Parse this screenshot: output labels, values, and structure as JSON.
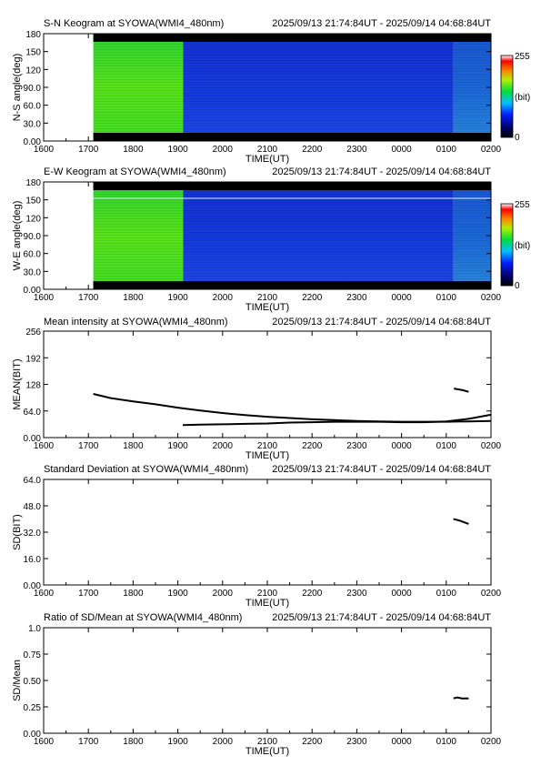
{
  "x_tick_labels": [
    "1600",
    "1700",
    "1800",
    "1900",
    "2000",
    "2100",
    "2200",
    "2300",
    "0000",
    "0100",
    "0200"
  ],
  "colorbar": {
    "max_label": "255",
    "unit_label": "(bit)",
    "min_label": "0"
  },
  "chart_data": [
    {
      "id": "sn_keogram",
      "type": "heatmap",
      "title": "S-N Keogram at SYOWA(WMI4_480nm)",
      "time_range": "2025/09/13 21:74:84UT - 2025/09/14 04:68:84UT",
      "xlabel": "TIME(UT)",
      "ylabel": "N-S angle(deg)",
      "xlim": [
        1600,
        2600
      ],
      "ylim": [
        0,
        180
      ],
      "y_ticks": [
        "0.00",
        "30.0",
        "60.0",
        "90.0",
        "120",
        "150",
        "180"
      ],
      "color_scale": [
        0,
        255
      ],
      "segments": [
        {
          "x": [
            1711,
            1912
          ],
          "value": 150
        },
        {
          "x": [
            1912,
            2516
          ],
          "value": 50
        },
        {
          "x": [
            2516,
            2600
          ],
          "value": 75
        }
      ]
    },
    {
      "id": "ew_keogram",
      "type": "heatmap",
      "title": "E-W Keogram at SYOWA(WMI4_480nm)",
      "time_range": "2025/09/13 21:74:84UT - 2025/09/14 04:68:84UT",
      "xlabel": "TIME(UT)",
      "ylabel": "W-E angle(deg)",
      "xlim": [
        1600,
        2600
      ],
      "ylim": [
        0,
        180
      ],
      "y_ticks": [
        "0.00",
        "30.0",
        "60.0",
        "90.0",
        "120",
        "150",
        "180"
      ],
      "color_scale": [
        0,
        255
      ],
      "segments": [
        {
          "x": [
            1711,
            1912
          ],
          "value": 150
        },
        {
          "x": [
            1912,
            2516
          ],
          "value": 50
        },
        {
          "x": [
            2516,
            2600
          ],
          "value": 75
        }
      ]
    },
    {
      "id": "mean_intensity",
      "type": "line",
      "title": "Mean intensity at SYOWA(WMI4_480nm)",
      "time_range": "2025/09/13 21:74:84UT - 2025/09/14 04:68:84UT",
      "xlabel": "TIME(UT)",
      "ylabel": "MEAN(BIT)",
      "xlim": [
        1600,
        2600
      ],
      "ylim": [
        0,
        256
      ],
      "y_ticks": [
        "0.00",
        "64.0",
        "128",
        "192",
        "256"
      ],
      "series": [
        {
          "x": [
            1711,
            1750,
            1800,
            1850,
            1900,
            1950,
            2000,
            2050,
            2100,
            2150,
            2200,
            2250,
            2300,
            2350,
            2400,
            2450,
            2500,
            2550,
            2600
          ],
          "y": [
            105,
            95,
            87,
            80,
            72,
            65,
            59,
            54,
            50,
            47,
            44,
            42,
            40,
            39,
            38,
            38,
            38,
            39,
            40
          ]
        },
        {
          "x": [
            1911,
            1950,
            2000,
            2050,
            2100,
            2150,
            2200,
            2250,
            2300,
            2350,
            2400,
            2450,
            2500,
            2550,
            2600
          ],
          "y": [
            30,
            31,
            32,
            33,
            34,
            36,
            37,
            38,
            38,
            38,
            37,
            37,
            39,
            45,
            55
          ]
        },
        {
          "x": [
            2517,
            2527,
            2537,
            2550
          ],
          "y": [
            118,
            116,
            114,
            110
          ]
        }
      ]
    },
    {
      "id": "standard_deviation",
      "type": "line",
      "title": "Standard Deviation at SYOWA(WMI4_480nm)",
      "time_range": "2025/09/13 21:74:84UT - 2025/09/14 04:68:84UT",
      "xlabel": "TIME(UT)",
      "ylabel": "SD(BIT)",
      "xlim": [
        1600,
        2600
      ],
      "ylim": [
        0,
        64
      ],
      "y_ticks": [
        "0.00",
        "16.0",
        "32.0",
        "48.0",
        "64.0"
      ],
      "series": [
        {
          "x": [
            2516,
            2530,
            2550
          ],
          "y": [
            40,
            39,
            37
          ]
        }
      ]
    },
    {
      "id": "ratio_sd_mean",
      "type": "line",
      "title": "Ratio of SD/Mean at SYOWA(WMI4_480nm)",
      "time_range": "2025/09/13 21:74:84UT - 2025/09/14 04:68:84UT",
      "xlabel": "TIME(UT)",
      "ylabel": "SD/Mean",
      "xlim": [
        1600,
        2600
      ],
      "ylim": [
        0,
        1
      ],
      "y_ticks": [
        "0.00",
        "0.25",
        "0.50",
        "0.75",
        "1.0"
      ],
      "series": [
        {
          "x": [
            2516,
            2525,
            2535,
            2550
          ],
          "y": [
            0.33,
            0.34,
            0.33,
            0.33
          ]
        }
      ]
    }
  ]
}
